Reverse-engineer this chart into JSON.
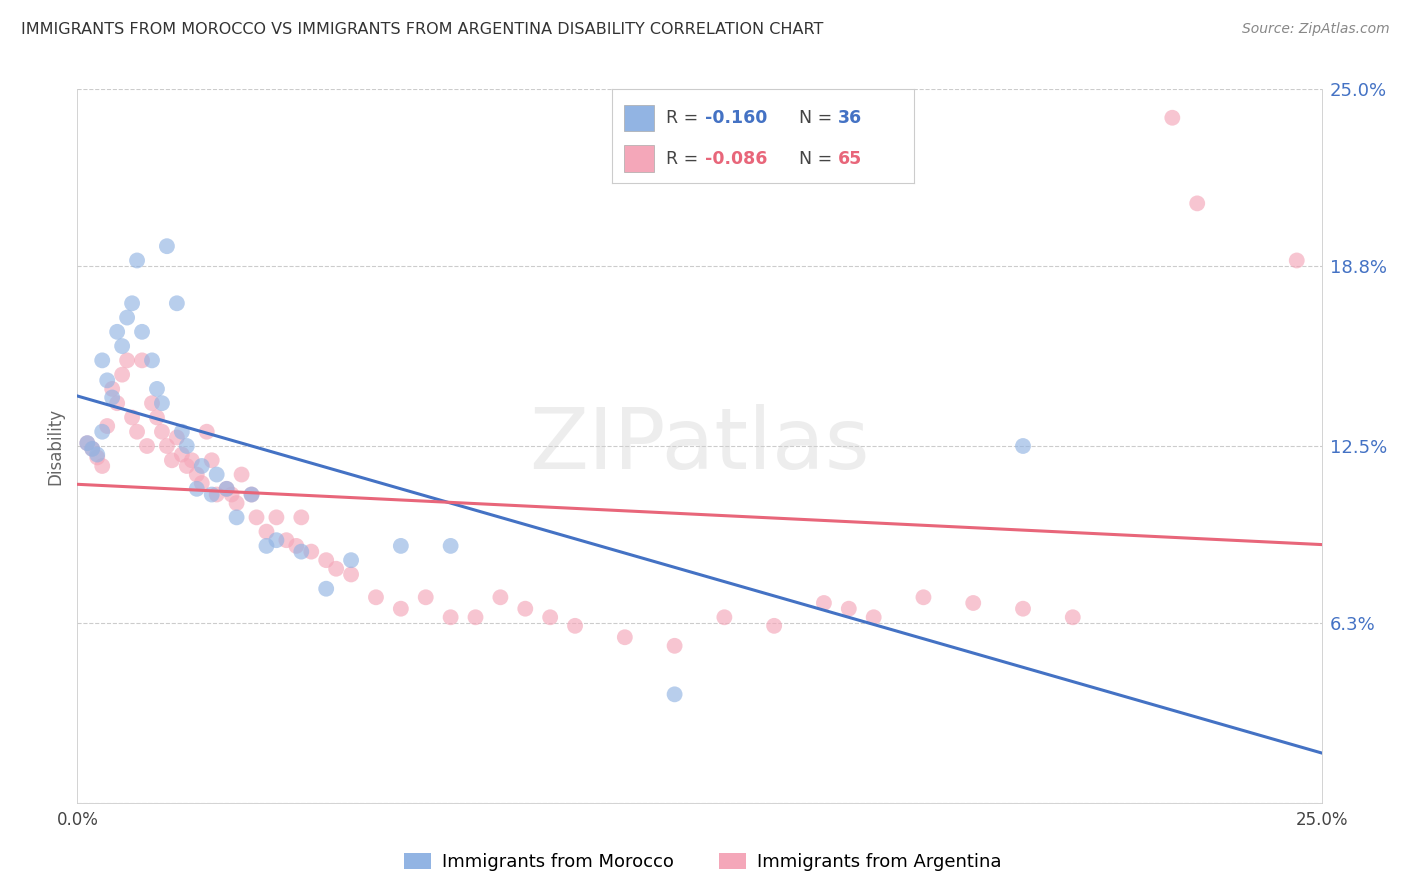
{
  "title": "IMMIGRANTS FROM MOROCCO VS IMMIGRANTS FROM ARGENTINA DISABILITY CORRELATION CHART",
  "source": "Source: ZipAtlas.com",
  "ylabel": "Disability",
  "xlim": [
    0.0,
    0.25
  ],
  "ylim": [
    0.0,
    0.25
  ],
  "yticks": [
    0.0,
    0.063,
    0.125,
    0.188,
    0.25
  ],
  "xticks": [
    0.0,
    0.0625,
    0.125,
    0.1875,
    0.25
  ],
  "right_ytick_labels": [
    "",
    "6.3%",
    "12.5%",
    "18.8%",
    "25.0%"
  ],
  "xtick_labels": [
    "0.0%",
    "",
    "",
    "",
    "25.0%"
  ],
  "watermark": "ZIPatlas",
  "legend_r1": "-0.160",
  "legend_n1": "36",
  "legend_r2": "-0.086",
  "legend_n2": "65",
  "color_morocco": "#92b4e3",
  "color_argentina": "#f4a7b9",
  "trendline_morocco_color": "#4472c4",
  "trendline_argentina_color": "#e8667a",
  "morocco_x": [
    0.002,
    0.003,
    0.004,
    0.005,
    0.005,
    0.006,
    0.007,
    0.008,
    0.009,
    0.01,
    0.011,
    0.012,
    0.013,
    0.015,
    0.016,
    0.017,
    0.018,
    0.02,
    0.021,
    0.022,
    0.024,
    0.025,
    0.027,
    0.028,
    0.03,
    0.032,
    0.035,
    0.038,
    0.04,
    0.045,
    0.05,
    0.055,
    0.065,
    0.075,
    0.19,
    0.12
  ],
  "morocco_y": [
    0.126,
    0.124,
    0.122,
    0.13,
    0.155,
    0.148,
    0.142,
    0.165,
    0.16,
    0.17,
    0.175,
    0.19,
    0.165,
    0.155,
    0.145,
    0.14,
    0.195,
    0.175,
    0.13,
    0.125,
    0.11,
    0.118,
    0.108,
    0.115,
    0.11,
    0.1,
    0.108,
    0.09,
    0.092,
    0.088,
    0.075,
    0.085,
    0.09,
    0.09,
    0.125,
    0.038
  ],
  "argentina_x": [
    0.002,
    0.003,
    0.004,
    0.005,
    0.006,
    0.007,
    0.008,
    0.009,
    0.01,
    0.011,
    0.012,
    0.013,
    0.014,
    0.015,
    0.016,
    0.017,
    0.018,
    0.019,
    0.02,
    0.021,
    0.022,
    0.023,
    0.024,
    0.025,
    0.026,
    0.027,
    0.028,
    0.03,
    0.031,
    0.032,
    0.033,
    0.035,
    0.036,
    0.038,
    0.04,
    0.042,
    0.044,
    0.045,
    0.047,
    0.05,
    0.052,
    0.055,
    0.06,
    0.065,
    0.07,
    0.075,
    0.08,
    0.085,
    0.09,
    0.095,
    0.1,
    0.11,
    0.12,
    0.13,
    0.14,
    0.15,
    0.155,
    0.16,
    0.17,
    0.18,
    0.19,
    0.2,
    0.22,
    0.225,
    0.245
  ],
  "argentina_y": [
    0.126,
    0.124,
    0.121,
    0.118,
    0.132,
    0.145,
    0.14,
    0.15,
    0.155,
    0.135,
    0.13,
    0.155,
    0.125,
    0.14,
    0.135,
    0.13,
    0.125,
    0.12,
    0.128,
    0.122,
    0.118,
    0.12,
    0.115,
    0.112,
    0.13,
    0.12,
    0.108,
    0.11,
    0.108,
    0.105,
    0.115,
    0.108,
    0.1,
    0.095,
    0.1,
    0.092,
    0.09,
    0.1,
    0.088,
    0.085,
    0.082,
    0.08,
    0.072,
    0.068,
    0.072,
    0.065,
    0.065,
    0.072,
    0.068,
    0.065,
    0.062,
    0.058,
    0.055,
    0.065,
    0.062,
    0.07,
    0.068,
    0.065,
    0.072,
    0.07,
    0.068,
    0.065,
    0.24,
    0.21,
    0.19
  ]
}
